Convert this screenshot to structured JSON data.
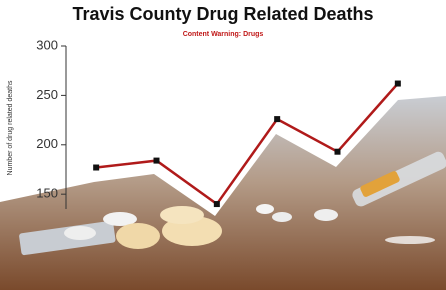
{
  "chart_data": {
    "type": "line",
    "title": "Travis County Drug Related Deaths",
    "subtitle": "Content Warning: Drugs",
    "y_label": "Number of drug related deaths",
    "categories": [
      null,
      null,
      null,
      null,
      null,
      null
    ],
    "values": [
      177,
      184,
      140,
      226,
      193,
      262
    ],
    "color": "#b01a1a",
    "marker_color": "#111111",
    "ylim": [
      135,
      300
    ],
    "yticks": [
      150,
      200,
      250,
      300
    ]
  }
}
